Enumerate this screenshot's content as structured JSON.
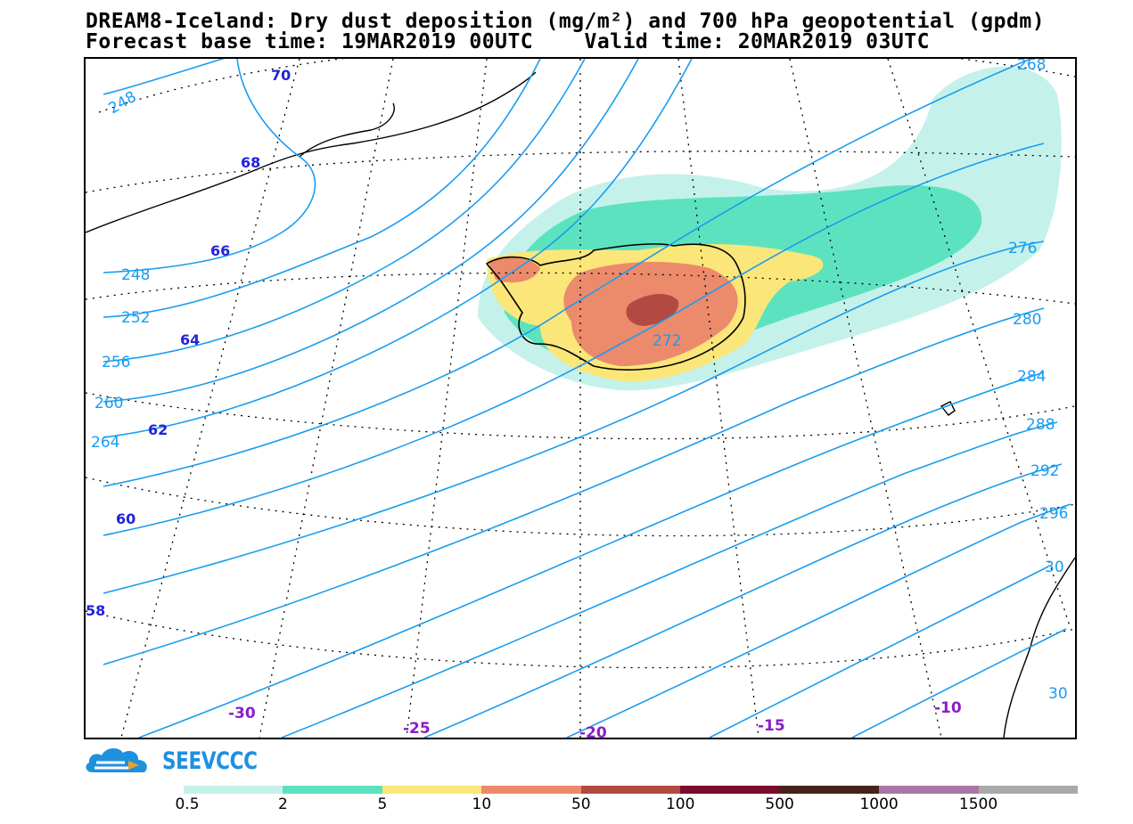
{
  "title": {
    "line1": "DREAM8-Iceland: Dry dust deposition (mg/m²) and 700 hPa geopotential (gpdm)",
    "line2": "Forecast base time: 19MAR2019 00UTC    Valid time: 20MAR2019 03UTC"
  },
  "map": {
    "isoline_labels": [
      "248",
      "248",
      "252",
      "256",
      "260",
      "264",
      "268",
      "272",
      "276",
      "280",
      "284",
      "288",
      "292",
      "296",
      "30",
      "30"
    ],
    "latitude_labels": [
      "70",
      "68",
      "66",
      "64",
      "62",
      "60",
      "58"
    ],
    "longitude_labels": [
      "-30",
      "-25",
      "-20",
      "-15",
      "-10"
    ],
    "colors": {
      "isoline": "#1a9cf0",
      "latitude_label": "#2222dd",
      "longitude_label": "#8a1ec8",
      "coastline": "#000000"
    }
  },
  "logo": {
    "text": "SEEVCCC",
    "icon": "cloud-logo-icon"
  },
  "legend": {
    "colors": [
      "#c4f2ea",
      "#5de2c0",
      "#fbe679",
      "#ec8a6c",
      "#b24a43",
      "#7b0d2c",
      "#452318",
      "#a878a4",
      "#a9a9a9"
    ],
    "labels": [
      "0.5",
      "2",
      "5",
      "10",
      "50",
      "100",
      "500",
      "1000",
      "1500"
    ]
  }
}
